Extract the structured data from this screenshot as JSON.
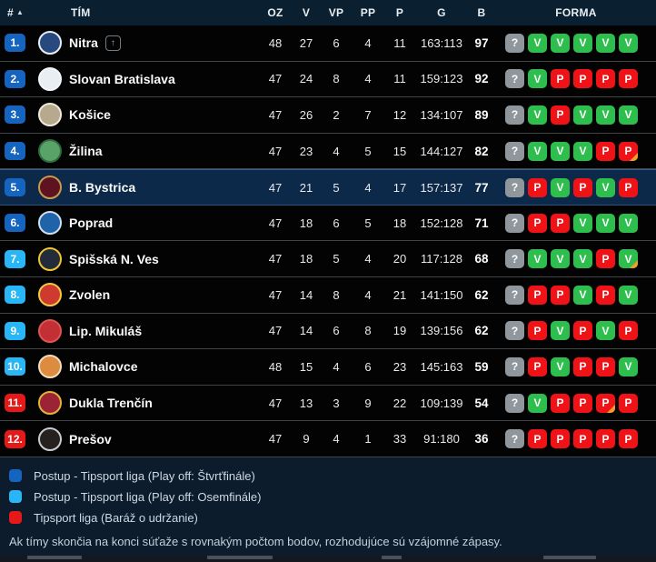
{
  "table": {
    "headers": {
      "rank": "#",
      "sort_icon": "▲",
      "team": "TÍM",
      "oz": "OZ",
      "v": "V",
      "vp": "VP",
      "pp": "PP",
      "p": "P",
      "g": "G",
      "b": "B",
      "forma": "FORMA"
    },
    "rows": [
      {
        "rank": "1.",
        "zone": "q",
        "team": "Nitra",
        "promoted": true,
        "highlight": false,
        "logo": {
          "ring": "#e8edf4",
          "fill": "#27497f"
        },
        "oz": "48",
        "v": "27",
        "vp": "6",
        "pp": "4",
        "p": "11",
        "g": "163:113",
        "b": "97",
        "forma": [
          {
            "r": "?"
          },
          {
            "r": "V"
          },
          {
            "r": "V"
          },
          {
            "r": "V"
          },
          {
            "r": "V"
          },
          {
            "r": "V"
          }
        ]
      },
      {
        "rank": "2.",
        "zone": "q",
        "team": "Slovan Bratislava",
        "promoted": false,
        "highlight": false,
        "logo": {
          "ring": "#f2f5f8",
          "fill": "#e9eef3"
        },
        "oz": "47",
        "v": "24",
        "vp": "8",
        "pp": "4",
        "p": "11",
        "g": "159:123",
        "b": "92",
        "forma": [
          {
            "r": "?"
          },
          {
            "r": "V"
          },
          {
            "r": "P"
          },
          {
            "r": "P"
          },
          {
            "r": "P"
          },
          {
            "r": "P"
          }
        ]
      },
      {
        "rank": "3.",
        "zone": "q",
        "team": "Košice",
        "promoted": false,
        "highlight": false,
        "logo": {
          "ring": "#efe9dc",
          "fill": "#b7a98e"
        },
        "oz": "47",
        "v": "26",
        "vp": "2",
        "pp": "7",
        "p": "12",
        "g": "134:107",
        "b": "89",
        "forma": [
          {
            "r": "?"
          },
          {
            "r": "V"
          },
          {
            "r": "P"
          },
          {
            "r": "V"
          },
          {
            "r": "V"
          },
          {
            "r": "V"
          }
        ]
      },
      {
        "rank": "4.",
        "zone": "q",
        "team": "Žilina",
        "promoted": false,
        "highlight": false,
        "logo": {
          "ring": "#2f6b3e",
          "fill": "#57a368"
        },
        "oz": "47",
        "v": "23",
        "vp": "4",
        "pp": "5",
        "p": "15",
        "g": "144:127",
        "b": "82",
        "forma": [
          {
            "r": "?"
          },
          {
            "r": "V"
          },
          {
            "r": "V"
          },
          {
            "r": "V"
          },
          {
            "r": "P"
          },
          {
            "r": "P",
            "ot": true
          }
        ]
      },
      {
        "rank": "5.",
        "zone": "q",
        "team": "B. Bystrica",
        "promoted": false,
        "highlight": true,
        "logo": {
          "ring": "#c69a4e",
          "fill": "#5e1320"
        },
        "oz": "47",
        "v": "21",
        "vp": "5",
        "pp": "4",
        "p": "17",
        "g": "157:137",
        "b": "77",
        "forma": [
          {
            "r": "?"
          },
          {
            "r": "P"
          },
          {
            "r": "V"
          },
          {
            "r": "P"
          },
          {
            "r": "V"
          },
          {
            "r": "P"
          }
        ]
      },
      {
        "rank": "6.",
        "zone": "q",
        "team": "Poprad",
        "promoted": false,
        "highlight": false,
        "logo": {
          "ring": "#cfe0f0",
          "fill": "#1f63a8"
        },
        "oz": "47",
        "v": "18",
        "vp": "6",
        "pp": "5",
        "p": "18",
        "g": "152:128",
        "b": "71",
        "forma": [
          {
            "r": "?"
          },
          {
            "r": "P"
          },
          {
            "r": "P"
          },
          {
            "r": "V"
          },
          {
            "r": "V"
          },
          {
            "r": "V"
          }
        ]
      },
      {
        "rank": "7.",
        "zone": "o",
        "team": "Spišská N. Ves",
        "promoted": false,
        "highlight": false,
        "logo": {
          "ring": "#f0c52e",
          "fill": "#232c3a"
        },
        "oz": "47",
        "v": "18",
        "vp": "5",
        "pp": "4",
        "p": "20",
        "g": "117:128",
        "b": "68",
        "forma": [
          {
            "r": "?"
          },
          {
            "r": "V"
          },
          {
            "r": "V"
          },
          {
            "r": "V"
          },
          {
            "r": "P"
          },
          {
            "r": "V",
            "ot": true
          }
        ]
      },
      {
        "rank": "8.",
        "zone": "o",
        "team": "Zvolen",
        "promoted": false,
        "highlight": false,
        "logo": {
          "ring": "#f3c93f",
          "fill": "#cf3a30"
        },
        "oz": "47",
        "v": "14",
        "vp": "8",
        "pp": "4",
        "p": "21",
        "g": "141:150",
        "b": "62",
        "forma": [
          {
            "r": "?"
          },
          {
            "r": "P"
          },
          {
            "r": "P"
          },
          {
            "r": "V"
          },
          {
            "r": "P"
          },
          {
            "r": "V"
          }
        ]
      },
      {
        "rank": "9.",
        "zone": "o",
        "team": "Lip. Mikuláš",
        "promoted": false,
        "highlight": false,
        "logo": {
          "ring": "#e05353",
          "fill": "#c22f35"
        },
        "oz": "47",
        "v": "14",
        "vp": "6",
        "pp": "8",
        "p": "19",
        "g": "139:156",
        "b": "62",
        "forma": [
          {
            "r": "?"
          },
          {
            "r": "P"
          },
          {
            "r": "V"
          },
          {
            "r": "P"
          },
          {
            "r": "V"
          },
          {
            "r": "P"
          }
        ]
      },
      {
        "rank": "10.",
        "zone": "o",
        "team": "Michalovce",
        "promoted": false,
        "highlight": false,
        "logo": {
          "ring": "#f3ddc0",
          "fill": "#dc8b3f"
        },
        "oz": "48",
        "v": "15",
        "vp": "4",
        "pp": "6",
        "p": "23",
        "g": "145:163",
        "b": "59",
        "forma": [
          {
            "r": "?"
          },
          {
            "r": "P"
          },
          {
            "r": "V"
          },
          {
            "r": "P"
          },
          {
            "r": "P"
          },
          {
            "r": "V"
          }
        ]
      },
      {
        "rank": "11.",
        "zone": "r",
        "team": "Dukla Trenčín",
        "promoted": false,
        "highlight": false,
        "logo": {
          "ring": "#e3b23c",
          "fill": "#9c2335"
        },
        "oz": "47",
        "v": "13",
        "vp": "3",
        "pp": "9",
        "p": "22",
        "g": "109:139",
        "b": "54",
        "forma": [
          {
            "r": "?"
          },
          {
            "r": "V"
          },
          {
            "r": "P"
          },
          {
            "r": "P"
          },
          {
            "r": "P",
            "ot": true
          },
          {
            "r": "P"
          }
        ]
      },
      {
        "rank": "12.",
        "zone": "r",
        "team": "Prešov",
        "promoted": false,
        "highlight": false,
        "logo": {
          "ring": "#c8ccd2",
          "fill": "#26211f"
        },
        "oz": "47",
        "v": "9",
        "vp": "4",
        "pp": "1",
        "p": "33",
        "g": "91:180",
        "b": "36",
        "forma": [
          {
            "r": "?"
          },
          {
            "r": "P"
          },
          {
            "r": "P"
          },
          {
            "r": "P"
          },
          {
            "r": "P"
          },
          {
            "r": "P"
          }
        ]
      }
    ]
  },
  "legend": [
    {
      "label": "Postup - Tipsport liga (Play off: Štvrťfinále)",
      "zone": "q"
    },
    {
      "label": "Postup - Tipsport liga (Play off: Osemfinále)",
      "zone": "o"
    },
    {
      "label": "Tipsport liga (Baráž o udržanie)",
      "zone": "r"
    }
  ],
  "note": "Ak tímy skončia na konci súťaže s rovnakým počtom bodov, rozhodujúce sú vzájomné zápasy.",
  "colors": {
    "quarterfinal": "#1565c0",
    "eighthfinal": "#29b6f6",
    "relegation": "#e61919",
    "win": "#2dbe4e",
    "loss": "#ef1216",
    "unknown": "#8f969c",
    "overtime_marker": "#f0a028"
  }
}
